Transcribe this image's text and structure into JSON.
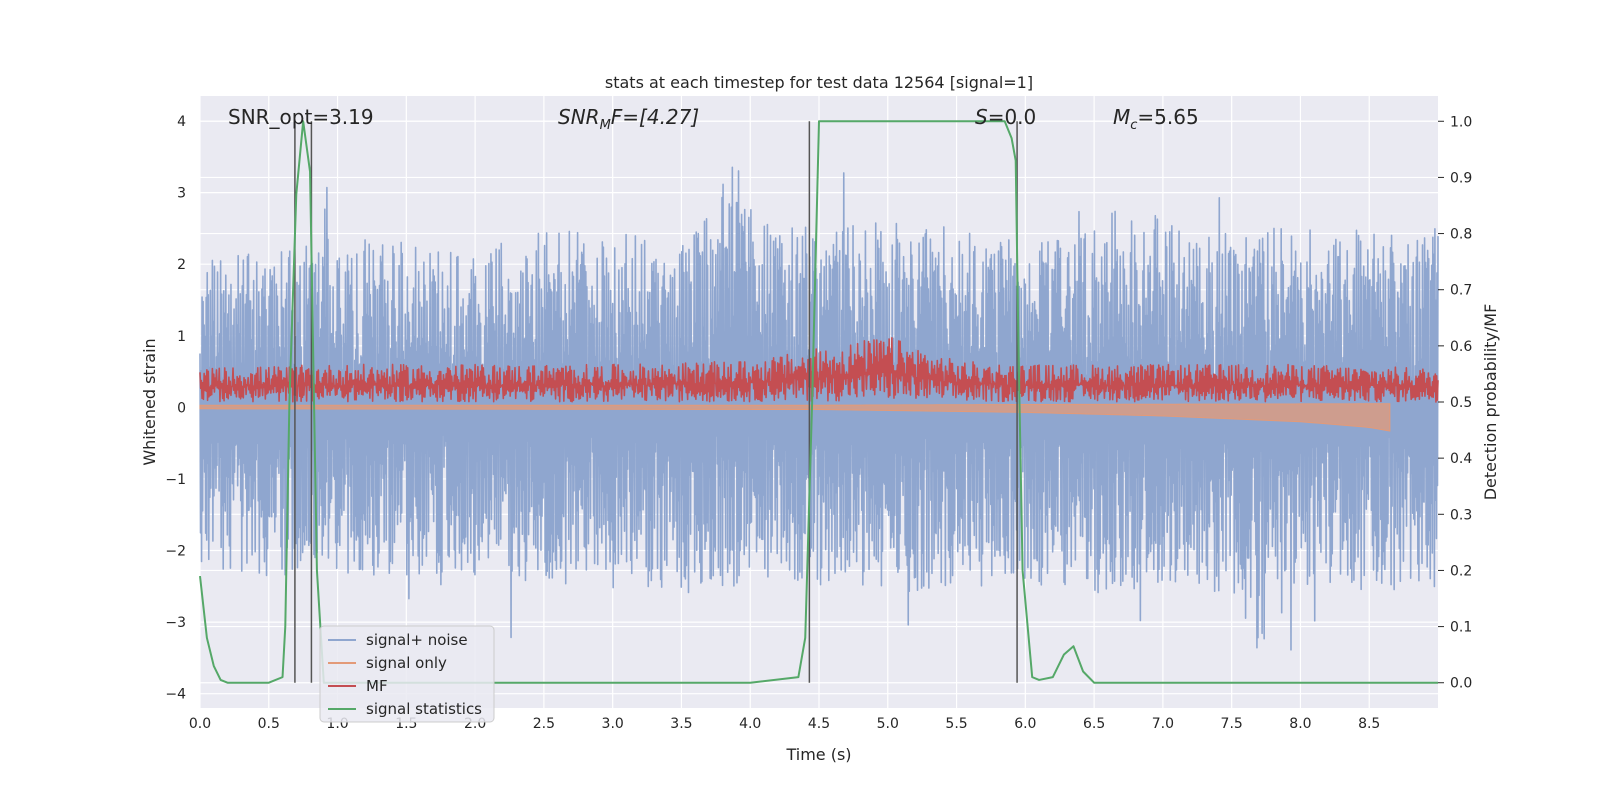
{
  "chart_data": {
    "type": "line",
    "title": "stats at each timestep for test data 12564 [signal=1]",
    "xlabel": "Time (s)",
    "ylabel_left": "Whitened strain",
    "ylabel_right": "Detection probability/MF",
    "xlim": [
      0.0,
      9.0
    ],
    "ylim_left": [
      -4.2,
      4.35
    ],
    "ylim_right": [
      -0.045,
      1.045
    ],
    "xticks": [
      "0.0",
      "0.5",
      "1.0",
      "1.5",
      "2.0",
      "2.5",
      "3.0",
      "3.5",
      "4.0",
      "4.5",
      "5.0",
      "5.5",
      "6.0",
      "6.5",
      "7.0",
      "7.5",
      "8.0",
      "8.5"
    ],
    "yticks_left": [
      "4",
      "3",
      "2",
      "1",
      "0",
      "−1",
      "−2",
      "−3",
      "−4"
    ],
    "yticks_right": [
      "1.0",
      "0.9",
      "0.8",
      "0.7",
      "0.6",
      "0.5",
      "0.4",
      "0.3",
      "0.2",
      "0.1",
      "0.0"
    ],
    "grid": true,
    "legend_position": "lower-left",
    "annotations": {
      "snr_opt": "SNR_opt=3.19",
      "snr_mf_sym": "SNR",
      "snr_mf_sub": "M",
      "snr_mf_rest": "F=[4.27]",
      "s_sym": "S",
      "s_rest": "=0.0",
      "mc_sym": "M",
      "mc_sub": "c",
      "mc_rest": "=5.65"
    },
    "series": [
      {
        "name": "signal+ noise",
        "color": "#8fa6cf",
        "axis": "left",
        "envelope_upper": [
          [
            0.0,
            2.0
          ],
          [
            0.5,
            2.3
          ],
          [
            1.0,
            2.4
          ],
          [
            1.5,
            2.3
          ],
          [
            2.0,
            2.2
          ],
          [
            2.5,
            2.5
          ],
          [
            3.0,
            2.4
          ],
          [
            3.5,
            2.5
          ],
          [
            3.9,
            3.5
          ],
          [
            4.0,
            2.6
          ],
          [
            4.5,
            2.5
          ],
          [
            5.0,
            2.6
          ],
          [
            5.5,
            2.5
          ],
          [
            6.0,
            2.3
          ],
          [
            6.5,
            2.5
          ],
          [
            6.8,
            3.0
          ],
          [
            7.0,
            2.6
          ],
          [
            7.5,
            2.5
          ],
          [
            8.0,
            2.5
          ],
          [
            8.5,
            2.5
          ],
          [
            9.0,
            2.5
          ]
        ],
        "envelope_lower": [
          [
            0.0,
            -2.2
          ],
          [
            0.5,
            -2.4
          ],
          [
            1.0,
            -2.3
          ],
          [
            1.5,
            -2.4
          ],
          [
            2.0,
            -2.3
          ],
          [
            2.5,
            -2.5
          ],
          [
            3.0,
            -2.4
          ],
          [
            3.5,
            -2.6
          ],
          [
            4.0,
            -2.5
          ],
          [
            4.5,
            -2.4
          ],
          [
            5.0,
            -2.6
          ],
          [
            5.5,
            -2.5
          ],
          [
            6.0,
            -2.5
          ],
          [
            6.5,
            -2.6
          ],
          [
            7.0,
            -2.5
          ],
          [
            7.5,
            -2.6
          ],
          [
            7.7,
            -3.5
          ],
          [
            8.0,
            -2.5
          ],
          [
            8.5,
            -2.6
          ],
          [
            9.0,
            -2.5
          ]
        ]
      },
      {
        "name": "signal only",
        "color": "#e39a78",
        "axis": "left",
        "envelope_upper": [
          [
            0.0,
            0.03
          ],
          [
            4.5,
            0.03
          ],
          [
            6.0,
            0.04
          ],
          [
            8.5,
            0.05
          ],
          [
            8.65,
            0.05
          ]
        ],
        "envelope_lower": [
          [
            0.0,
            -0.02
          ],
          [
            4.5,
            -0.03
          ],
          [
            6.0,
            -0.07
          ],
          [
            7.0,
            -0.12
          ],
          [
            8.0,
            -0.2
          ],
          [
            8.5,
            -0.28
          ],
          [
            8.65,
            -0.33
          ]
        ]
      },
      {
        "name": "MF",
        "color": "#c44e52",
        "axis": "left",
        "envelope_upper": [
          [
            0.0,
            0.55
          ],
          [
            1.0,
            0.6
          ],
          [
            2.0,
            0.6
          ],
          [
            3.0,
            0.6
          ],
          [
            4.0,
            0.65
          ],
          [
            5.0,
            1.0
          ],
          [
            5.5,
            0.65
          ],
          [
            6.0,
            0.6
          ],
          [
            7.0,
            0.6
          ],
          [
            8.0,
            0.6
          ],
          [
            9.0,
            0.55
          ]
        ],
        "envelope_lower": [
          [
            0.0,
            0.05
          ],
          [
            9.0,
            0.05
          ]
        ]
      },
      {
        "name": "signal statistics",
        "color": "#55a868",
        "axis": "right",
        "points": [
          [
            0.0,
            0.19
          ],
          [
            0.05,
            0.08
          ],
          [
            0.1,
            0.03
          ],
          [
            0.15,
            0.005
          ],
          [
            0.2,
            0.0
          ],
          [
            0.3,
            0.0
          ],
          [
            0.5,
            0.0
          ],
          [
            0.6,
            0.01
          ],
          [
            0.62,
            0.1
          ],
          [
            0.65,
            0.5
          ],
          [
            0.7,
            0.87
          ],
          [
            0.75,
            1.0
          ],
          [
            0.8,
            0.91
          ],
          [
            0.85,
            0.2
          ],
          [
            0.9,
            0.0
          ],
          [
            1.5,
            0.0
          ],
          [
            2.0,
            0.0
          ],
          [
            3.0,
            0.0
          ],
          [
            4.0,
            0.0
          ],
          [
            4.35,
            0.01
          ],
          [
            4.4,
            0.08
          ],
          [
            4.45,
            0.5
          ],
          [
            4.5,
            1.0
          ],
          [
            5.0,
            1.0
          ],
          [
            5.5,
            1.0
          ],
          [
            5.85,
            1.0
          ],
          [
            5.9,
            0.97
          ],
          [
            5.93,
            0.93
          ],
          [
            5.95,
            0.6
          ],
          [
            5.98,
            0.2
          ],
          [
            6.05,
            0.01
          ],
          [
            6.1,
            0.005
          ],
          [
            6.2,
            0.01
          ],
          [
            6.28,
            0.05
          ],
          [
            6.35,
            0.065
          ],
          [
            6.42,
            0.02
          ],
          [
            6.5,
            0.0
          ],
          [
            7.0,
            0.0
          ],
          [
            8.0,
            0.0
          ],
          [
            9.0,
            0.0
          ]
        ]
      }
    ],
    "vlines": [
      0.69,
      0.81,
      4.43,
      5.94
    ]
  }
}
